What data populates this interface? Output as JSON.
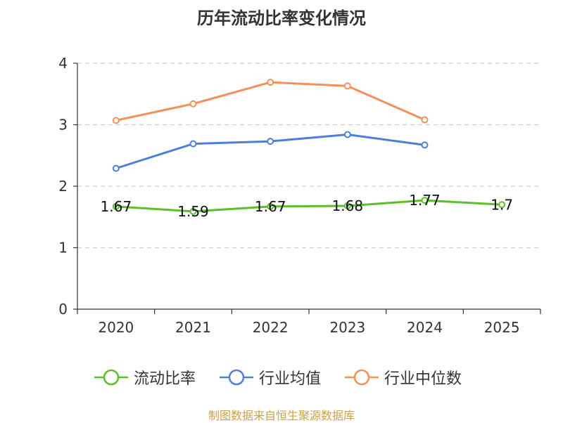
{
  "chart_data": {
    "type": "line",
    "title": "历年流动比率变化情况",
    "categories": [
      "2020",
      "2021",
      "2022",
      "2023",
      "2024",
      "2025"
    ],
    "ylim": [
      0,
      4
    ],
    "yticks": [
      "0",
      "1",
      "2",
      "3",
      "4"
    ],
    "grid": true,
    "legend_position": "bottom",
    "series": [
      {
        "name": "流动比率",
        "color": "#5cbf2a",
        "values": [
          1.67,
          1.59,
          1.67,
          1.68,
          1.77,
          1.7
        ],
        "labels": [
          "1.67",
          "1.59",
          "1.67",
          "1.68",
          "1.77",
          "1.7"
        ]
      },
      {
        "name": "行业均值",
        "color": "#4c80d8",
        "values": [
          2.29,
          2.69,
          2.73,
          2.84,
          2.67,
          null
        ]
      },
      {
        "name": "行业中位数",
        "color": "#f5905a",
        "values": [
          3.07,
          3.34,
          3.69,
          3.63,
          3.08,
          null
        ]
      }
    ]
  },
  "source_text": "制图数据来自恒生聚源数据库"
}
